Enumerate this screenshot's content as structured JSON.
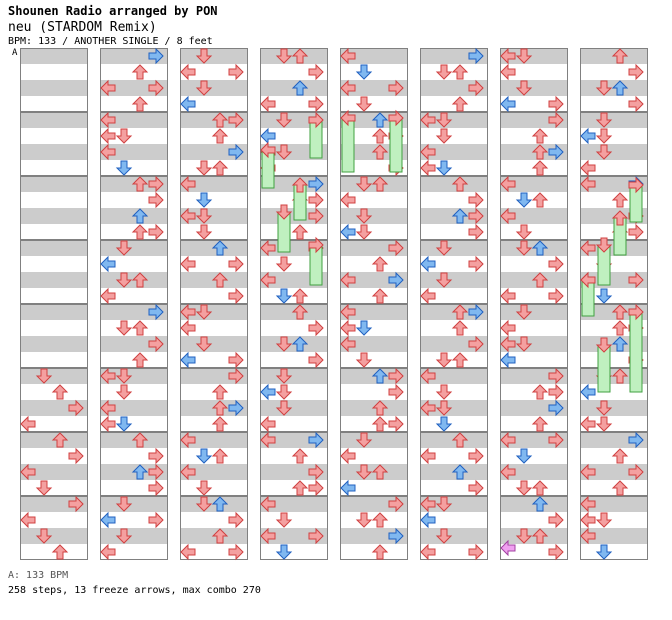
{
  "header": {
    "artist_line": "Shounen Radio arranged by PON",
    "song_title": "neu (STARDOM Remix)",
    "info_line": "BPM: 133 / ANOTHER SINGLE / 8 feet"
  },
  "bpm_marker": "A",
  "footer": {
    "bpm_legend": "A: 133 BPM",
    "stats": "258 steps, 13 freeze arrows, max combo 270"
  },
  "colors": {
    "quarter_arrow": "#f4a0a0",
    "quarter_arrow_stroke": "#d04040",
    "eighth_arrow": "#80b8f0",
    "eighth_arrow_stroke": "#2060c0",
    "sixteenth_arrow": "#f0a0f0",
    "freeze": "#c0f0c0",
    "freeze_stroke": "#40a040",
    "stripe": "#cccccc"
  },
  "chart_data": {
    "type": "step-chart",
    "steps": 258,
    "freeze_arrows": 13,
    "max_combo": 270,
    "bpm": 133,
    "columns": 8,
    "measures_per_column": 8
  }
}
